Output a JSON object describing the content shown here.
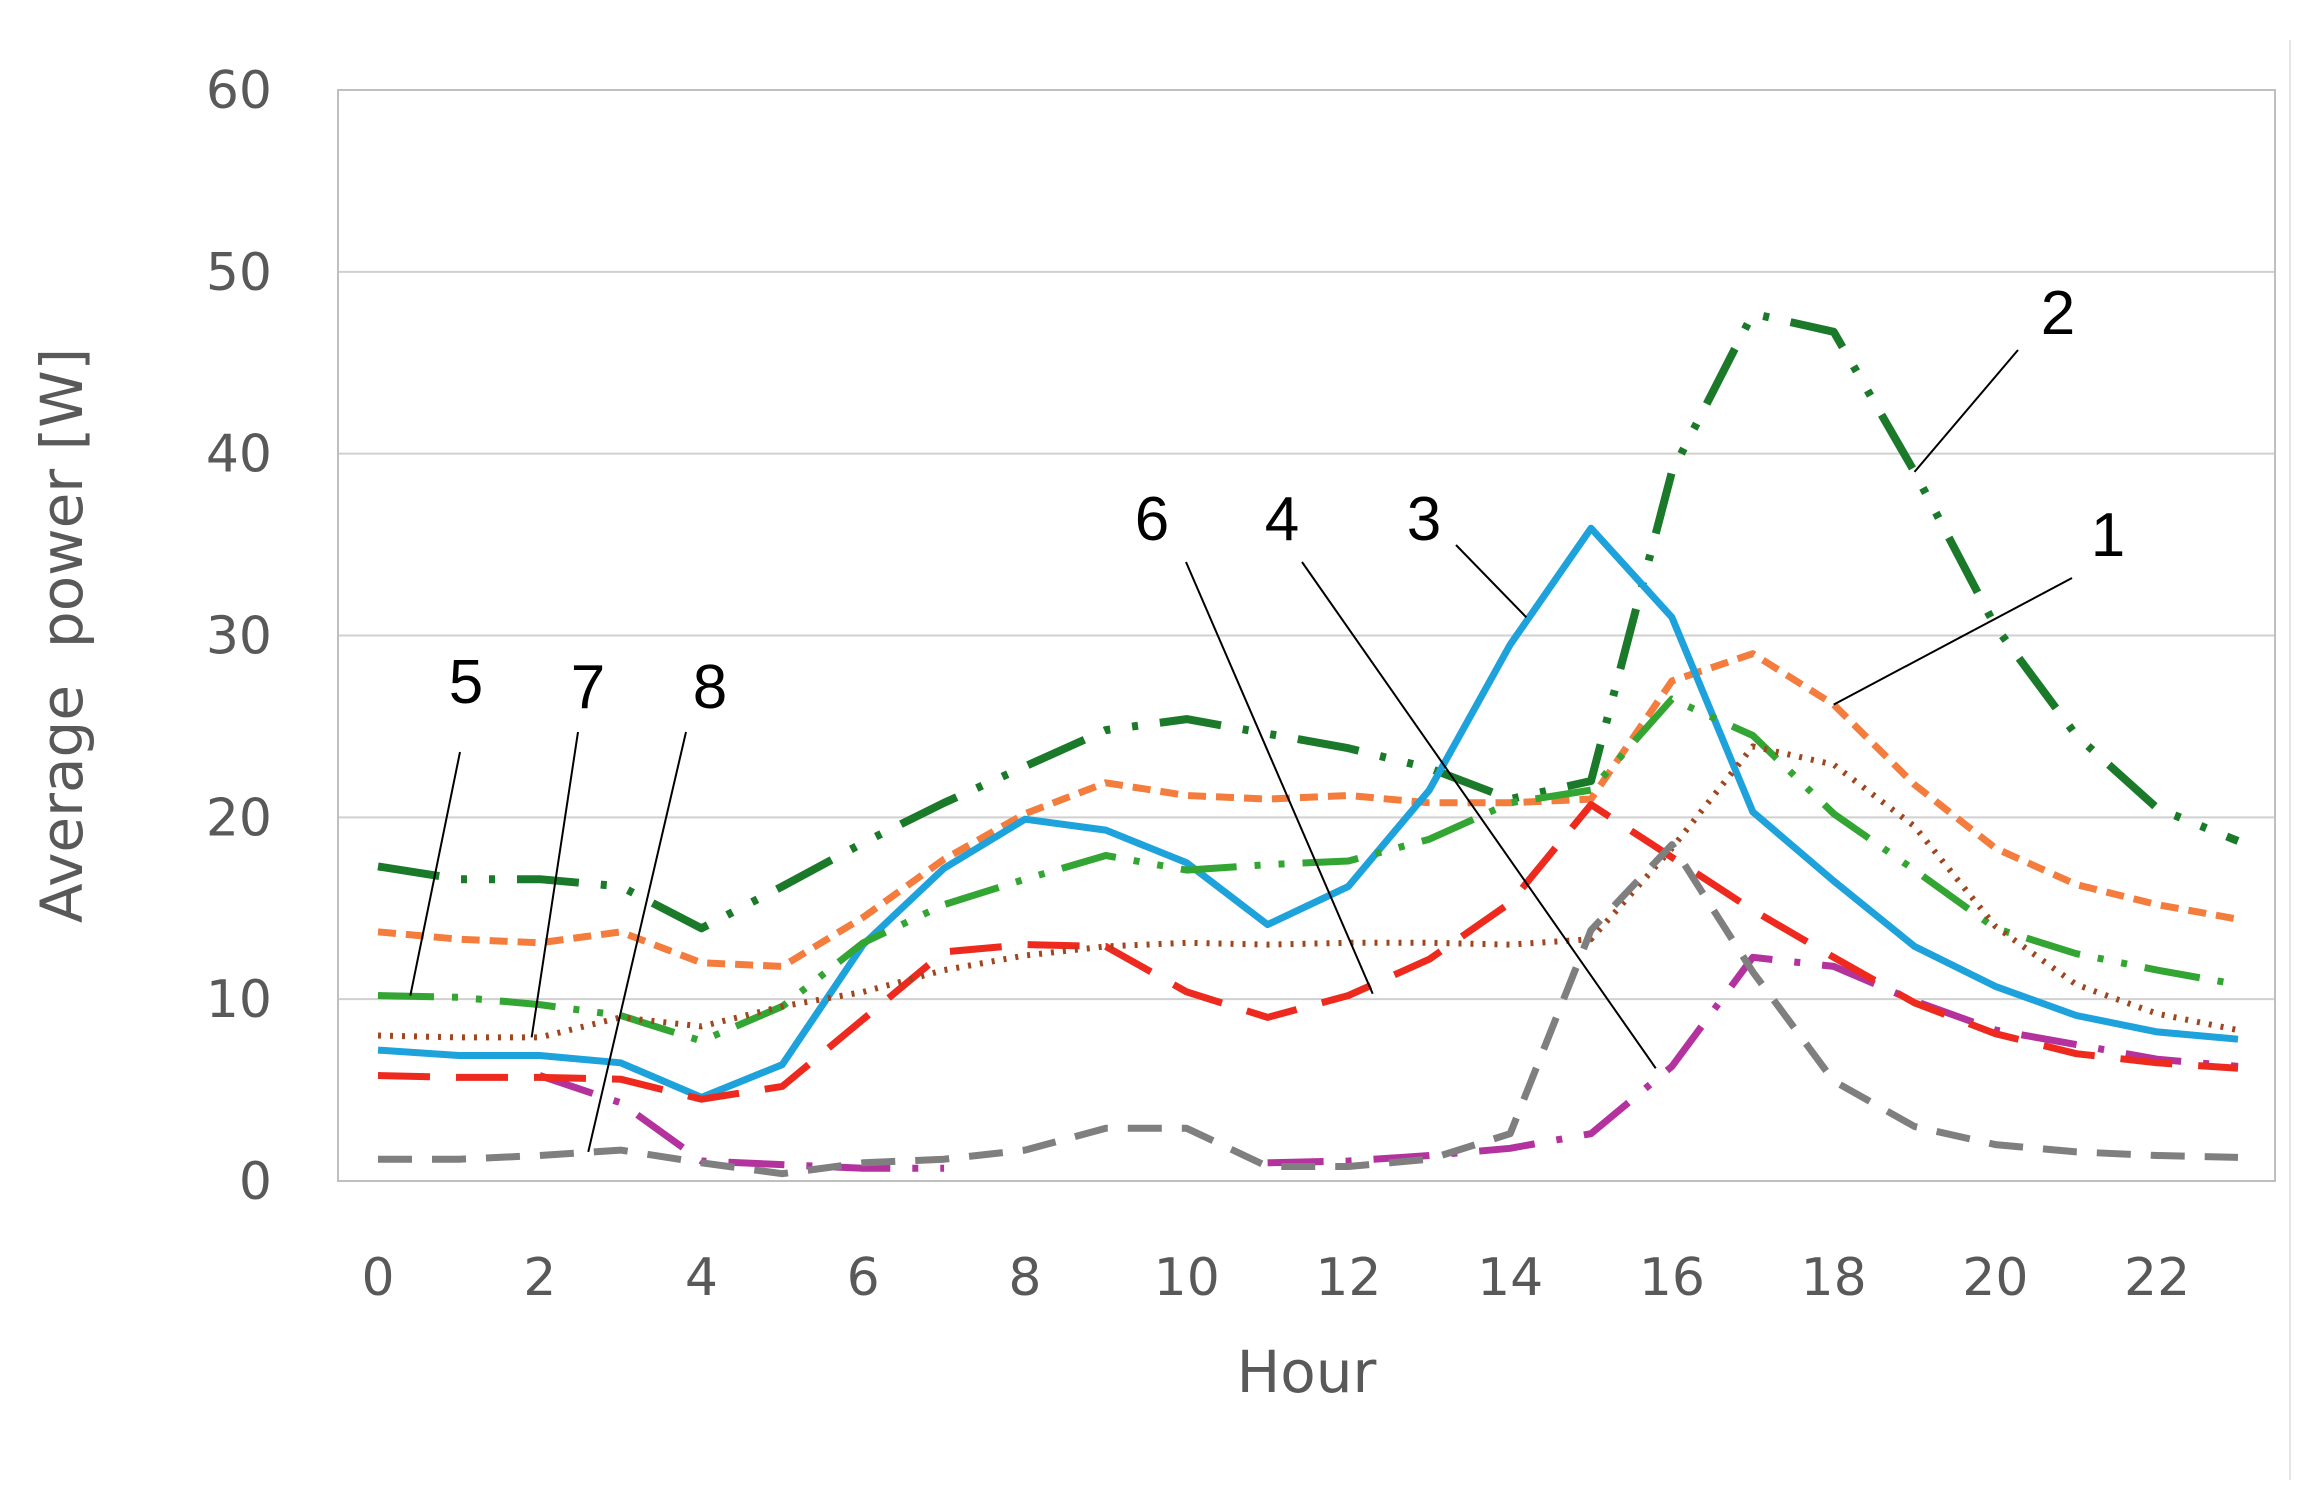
{
  "chart_data": {
    "type": "line",
    "title": "",
    "xlabel": "Hour",
    "ylabel": "Average  power [W]",
    "xlim": [
      0,
      23
    ],
    "ylim": [
      0,
      60
    ],
    "x_ticks": [
      "0",
      "2",
      "4",
      "6",
      "8",
      "10",
      "12",
      "14",
      "16",
      "18",
      "20",
      "22"
    ],
    "y_ticks": [
      "0",
      "10",
      "20",
      "30",
      "40",
      "50",
      "60"
    ],
    "grid": true,
    "legend": "none",
    "x": [
      0,
      1,
      2,
      3,
      4,
      5,
      6,
      7,
      8,
      9,
      10,
      11,
      12,
      13,
      14,
      15,
      16,
      17,
      18,
      19,
      20,
      21,
      22,
      23
    ],
    "series": [
      {
        "name": "1",
        "color": "#f47c3c",
        "dash": "18,10",
        "width": 7,
        "values": [
          13.7,
          13.3,
          13.1,
          13.7,
          12.0,
          11.8,
          14.5,
          17.7,
          20.2,
          21.9,
          21.2,
          21.0,
          21.2,
          20.8,
          20.8,
          21.0,
          27.5,
          29.0,
          26.2,
          21.8,
          18.3,
          16.3,
          15.2,
          14.4
        ]
      },
      {
        "name": "2",
        "color": "#1a7a2a",
        "dash": "62,22,6,22,6,22",
        "width": 8,
        "values": [
          17.3,
          16.6,
          16.6,
          16.2,
          13.9,
          16.2,
          18.6,
          20.8,
          22.8,
          24.8,
          25.4,
          24.6,
          23.8,
          22.7,
          21.0,
          22.0,
          39.0,
          47.7,
          46.7,
          39.0,
          30.5,
          24.5,
          20.5,
          18.7
        ]
      },
      {
        "name": "3",
        "color": "#1ea2dc",
        "dash": "",
        "width": 7,
        "values": [
          7.2,
          6.9,
          6.9,
          6.5,
          4.6,
          6.4,
          13.0,
          17.2,
          19.9,
          19.3,
          17.5,
          14.1,
          16.2,
          21.5,
          29.5,
          35.9,
          31.0,
          20.3,
          16.5,
          12.9,
          10.7,
          9.1,
          8.2,
          7.8
        ]
      },
      {
        "name": "4",
        "color": "#b4329e",
        "dash": "56,22,6,22",
        "width": 7,
        "values": [
          null,
          null,
          5.8,
          4.3,
          1.1,
          0.9,
          0.7,
          0.7,
          null,
          0.9,
          null,
          1.0,
          1.1,
          1.4,
          1.8,
          2.6,
          6.3,
          12.3,
          11.8,
          9.9,
          8.3,
          7.5,
          6.7,
          6.3
        ]
      },
      {
        "name": "5",
        "color": "#33a532",
        "dash": "56,18,6,18,6,18",
        "width": 7,
        "values": [
          10.2,
          10.1,
          9.7,
          9.1,
          7.7,
          9.6,
          13.1,
          15.2,
          16.6,
          17.9,
          17.1,
          17.4,
          17.6,
          18.8,
          20.8,
          21.5,
          26.5,
          24.5,
          20.2,
          17.1,
          13.9,
          12.5,
          11.6,
          10.8
        ]
      },
      {
        "name": "6",
        "color": "#ee2a1e",
        "dash": "52,26",
        "width": 7,
        "values": [
          5.8,
          5.7,
          5.7,
          5.6,
          4.5,
          5.2,
          8.9,
          12.6,
          13.0,
          12.9,
          10.4,
          9.0,
          10.2,
          12.2,
          15.3,
          20.7,
          17.8,
          14.9,
          12.3,
          9.8,
          8.1,
          7.0,
          6.5,
          6.2
        ]
      },
      {
        "name": "7",
        "color": "#a0461e",
        "dash": "3,9",
        "width": 6,
        "values": [
          8.0,
          7.9,
          7.9,
          9.0,
          8.5,
          9.6,
          10.4,
          11.6,
          12.4,
          12.9,
          13.1,
          13.0,
          13.1,
          13.1,
          13.0,
          13.3,
          18.3,
          23.9,
          22.9,
          19.5,
          14.0,
          10.8,
          9.2,
          8.3
        ]
      },
      {
        "name": "8",
        "color": "#7f7f7f",
        "dash": "34,20",
        "width": 7,
        "values": [
          1.2,
          1.2,
          1.4,
          1.7,
          1.0,
          0.4,
          1.0,
          1.2,
          1.7,
          2.9,
          2.9,
          0.8,
          0.8,
          1.2,
          2.6,
          13.8,
          18.5,
          11.5,
          5.5,
          3.0,
          2.0,
          1.6,
          1.4,
          1.3
        ]
      }
    ],
    "callouts": [
      {
        "label": "1",
        "x": 18.0,
        "y": 26.2
      },
      {
        "label": "2",
        "x": 19.0,
        "y": 39.0
      },
      {
        "label": "3",
        "x": 14.2,
        "y": 31.0
      },
      {
        "label": "4",
        "x": 15.8,
        "y": 6.2
      },
      {
        "label": "5",
        "x": 0.4,
        "y": 10.2
      },
      {
        "label": "6",
        "x": 12.3,
        "y": 10.3
      },
      {
        "label": "7",
        "x": 1.9,
        "y": 7.9
      },
      {
        "label": "8",
        "x": 2.6,
        "y": 1.6
      }
    ]
  }
}
